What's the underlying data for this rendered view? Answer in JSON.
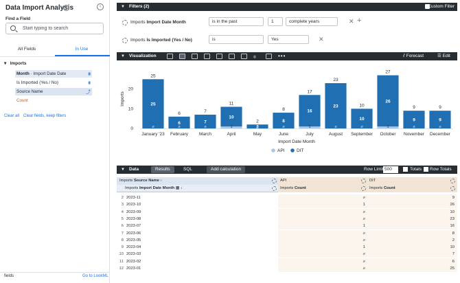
{
  "sidebar": {
    "title": "Data Import Analysis",
    "find_label": "Find a Field",
    "search_placeholder": "Start typing to search",
    "tabs": [
      "All Fields",
      "In Use"
    ],
    "group": "Imports",
    "fields": [
      {
        "prefix": "Month",
        "label": " · Import Date Date"
      },
      {
        "prefix": "",
        "label": "Is Imported (Yes / No)"
      },
      {
        "prefix": "",
        "label": "Source Name"
      },
      {
        "prefix": "",
        "label": "Count"
      }
    ],
    "clear_all": "Clear all",
    "clear_fields": "Clear fields, keep filters",
    "footer_left": "fields",
    "footer_right": "Go to LookML"
  },
  "filters": {
    "header": "Filters (2)",
    "custom": "Custom Filter",
    "rows": [
      {
        "prefix": "Imports ",
        "field": "Import Date Month",
        "op": "is in the past",
        "val": "1",
        "unit": "complete years"
      },
      {
        "prefix": "Imports ",
        "field": "Is Imported (Yes / No)",
        "op": "is",
        "val": "Yes"
      }
    ]
  },
  "viz": {
    "header": "Visualization",
    "forecast": "Forecast",
    "edit": "Edit"
  },
  "chart_data": {
    "type": "bar",
    "stacked": true,
    "xlabel": "Import Date Month",
    "ylabel": "Imports",
    "ylim": [
      0,
      30
    ],
    "yticks": [
      0,
      10,
      20
    ],
    "categories": [
      "January '23",
      "February",
      "March",
      "April",
      "May",
      "June",
      "July",
      "August",
      "September",
      "October",
      "November",
      "December"
    ],
    "series": [
      {
        "name": "API",
        "color": "#a7c7e7",
        "values": [
          0,
          0,
          0,
          1,
          0,
          0,
          1,
          0,
          0,
          1,
          0,
          0
        ],
        "labels": [
          "ø",
          "ø",
          "ø",
          "1",
          "ø",
          "ø",
          "1",
          "ø",
          "ø",
          "1",
          "ø",
          "ø"
        ]
      },
      {
        "name": "DIT",
        "color": "#1f6fb2",
        "values": [
          25,
          6,
          7,
          10,
          2,
          8,
          16,
          23,
          10,
          26,
          9,
          9
        ]
      }
    ],
    "totals": [
      25,
      6,
      7,
      11,
      2,
      8,
      17,
      23,
      10,
      27,
      9,
      9
    ]
  },
  "data": {
    "header": "Data",
    "tab_results": "Results",
    "tab_sql": "SQL",
    "add_calc": "Add calculation",
    "row_limit_label": "Row Limit",
    "row_limit": "500",
    "totals": "Totals",
    "row_totals": "Row Totals",
    "pivot_label_prefix": "Imports ",
    "pivot_label": "Source Name",
    "pivot_api": "API",
    "pivot_dit": "DIT",
    "col_month_prefix": "Imports ",
    "col_month": "Import Date Month",
    "col_count_prefix": "Imports ",
    "col_count": "Count",
    "rows": [
      {
        "n": "2",
        "m": "2023-11",
        "api": "ø",
        "dit": "9"
      },
      {
        "n": "3",
        "m": "2023-10",
        "api": "1",
        "dit": "26"
      },
      {
        "n": "4",
        "m": "2023-09",
        "api": "ø",
        "dit": "10"
      },
      {
        "n": "5",
        "m": "2023-08",
        "api": "ø",
        "dit": "23"
      },
      {
        "n": "6",
        "m": "2023-07",
        "api": "1",
        "dit": "16"
      },
      {
        "n": "7",
        "m": "2023-06",
        "api": "ø",
        "dit": "8"
      },
      {
        "n": "8",
        "m": "2023-05",
        "api": "ø",
        "dit": "2"
      },
      {
        "n": "9",
        "m": "2023-04",
        "api": "1",
        "dit": "10"
      },
      {
        "n": "10",
        "m": "2023-03",
        "api": "ø",
        "dit": "7"
      },
      {
        "n": "11",
        "m": "2023-02",
        "api": "ø",
        "dit": "6"
      },
      {
        "n": "12",
        "m": "2023-01",
        "api": "ø",
        "dit": "25"
      }
    ]
  }
}
